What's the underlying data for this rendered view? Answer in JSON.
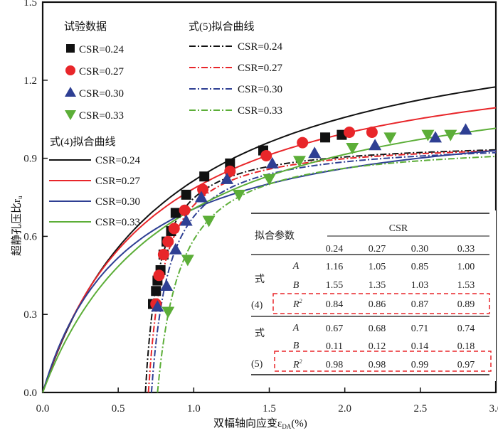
{
  "chart_data": {
    "type": "scatter",
    "title": "",
    "xlabel": "双幅轴向应变ε",
    "xlabel_sub": "DA",
    "xlabel_unit": "(%)",
    "ylabel": "超静孔压比r",
    "ylabel_sub": "u",
    "xlim": [
      0,
      3.0
    ],
    "ylim": [
      0,
      1.5
    ],
    "xticks": [
      "0.0",
      "0.5",
      "1.0",
      "1.5",
      "2.0",
      "2.5",
      "3.0"
    ],
    "xtick_values": [
      0,
      0.5,
      1.0,
      1.5,
      2.0,
      2.5,
      3.0
    ],
    "yticks": [
      "0.0",
      "0.3",
      "0.6",
      "0.9",
      "1.2",
      "1.5"
    ],
    "ytick_values": [
      0,
      0.3,
      0.6,
      0.9,
      1.2,
      1.5
    ],
    "colors": {
      "0.24": "#111111",
      "0.27": "#e8262a",
      "0.30": "#2e3f93",
      "0.33": "#5cae38"
    },
    "series": [
      {
        "name": "CSR=0.24",
        "csr": "0.24",
        "marker": "square",
        "x": [
          0.73,
          0.75,
          0.76,
          0.78,
          0.8,
          0.82,
          0.85,
          0.88,
          0.95,
          1.07,
          1.24,
          1.46,
          1.87,
          1.98
        ],
        "y": [
          0.34,
          0.39,
          0.43,
          0.47,
          0.53,
          0.58,
          0.62,
          0.69,
          0.76,
          0.83,
          0.88,
          0.93,
          0.98,
          0.99
        ],
        "eq4": {
          "A": 1.16,
          "B": 1.55
        },
        "eq5": {
          "A": 0.67,
          "B": 0.11,
          "x0": 0.68
        }
      },
      {
        "name": "CSR=0.27",
        "csr": "0.27",
        "marker": "circle",
        "x": [
          0.75,
          0.77,
          0.8,
          0.83,
          0.87,
          0.94,
          1.06,
          1.24,
          1.48,
          1.72,
          2.03,
          2.18
        ],
        "y": [
          0.34,
          0.45,
          0.53,
          0.58,
          0.63,
          0.7,
          0.78,
          0.85,
          0.91,
          0.96,
          1.0,
          1.0
        ],
        "eq4": {
          "A": 1.05,
          "B": 1.35
        },
        "eq5": {
          "A": 0.68,
          "B": 0.12,
          "x0": 0.7
        }
      },
      {
        "name": "CSR=0.30",
        "csr": "0.30",
        "marker": "triangle-up",
        "x": [
          0.76,
          0.82,
          0.88,
          0.95,
          1.05,
          1.22,
          1.52,
          1.8,
          2.2,
          2.6,
          2.8
        ],
        "y": [
          0.33,
          0.41,
          0.55,
          0.66,
          0.75,
          0.82,
          0.88,
          0.92,
          0.95,
          0.98,
          1.01
        ],
        "eq4": {
          "A": 0.85,
          "B": 1.03
        },
        "eq5": {
          "A": 0.71,
          "B": 0.14,
          "x0": 0.72
        }
      },
      {
        "name": "CSR=0.33",
        "csr": "0.33",
        "marker": "triangle-down",
        "x": [
          0.83,
          0.96,
          1.1,
          1.3,
          1.5,
          1.7,
          2.05,
          2.3,
          2.55,
          2.7
        ],
        "y": [
          0.31,
          0.51,
          0.66,
          0.76,
          0.82,
          0.89,
          0.94,
          0.98,
          0.99,
          0.99
        ],
        "eq4": {
          "A": 1.0,
          "B": 1.53
        },
        "eq5": {
          "A": 0.74,
          "B": 0.18,
          "x0": 0.76
        }
      }
    ],
    "legend": {
      "data_title": "试验数据",
      "eq5_title": "式(5)拟合曲线",
      "eq4_title": "式(4)拟合曲线",
      "entries": [
        "CSR=0.24",
        "CSR=0.27",
        "CSR=0.30",
        "CSR=0.33"
      ],
      "placement": "top-left"
    },
    "table": {
      "header_param": "拟合参数",
      "header_group": "CSR",
      "columns": [
        "0.24",
        "0.27",
        "0.30",
        "0.33"
      ],
      "eq4_label_a": "式",
      "eq4_label_b": "(4)",
      "eq5_label_a": "式",
      "eq5_label_b": "(5)",
      "param_A": "A",
      "param_B": "B",
      "param_R": "R",
      "param_R_sup": "2",
      "eq4": {
        "A": [
          "1.16",
          "1.05",
          "0.85",
          "1.00"
        ],
        "B": [
          "1.55",
          "1.35",
          "1.03",
          "1.53"
        ],
        "R2": [
          "0.84",
          "0.86",
          "0.87",
          "0.89"
        ]
      },
      "eq5": {
        "A": [
          "0.67",
          "0.68",
          "0.71",
          "0.74"
        ],
        "B": [
          "0.11",
          "0.12",
          "0.14",
          "0.18"
        ],
        "R2": [
          "0.98",
          "0.98",
          "0.99",
          "0.97"
        ]
      },
      "highlight_color": "#e8262a",
      "placement": "bottom-right"
    }
  }
}
